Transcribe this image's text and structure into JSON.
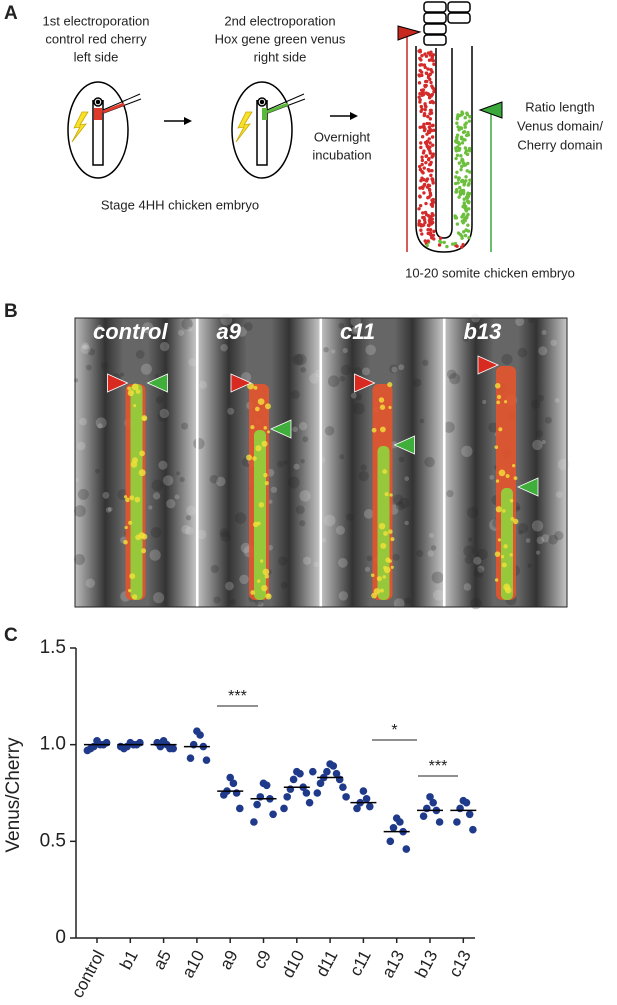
{
  "panel_a": {
    "label": "A",
    "step1": [
      "1st electroporation",
      "control red cherry",
      "left side"
    ],
    "step2": [
      "2nd electroporation",
      "Hox gene green venus",
      "right side"
    ],
    "incubation": [
      "Overnight",
      "incubation"
    ],
    "stage": "Stage 4HH chicken embryo",
    "ratio": [
      "Ratio length",
      "Venus domain/",
      "Cherry domain"
    ],
    "result": "10-20 somite chicken embryo"
  },
  "panel_b": {
    "label": "B",
    "images": [
      "control",
      "a9",
      "c11",
      "b13"
    ]
  },
  "panel_c": {
    "label": "C"
  },
  "chart_data": {
    "type": "strip",
    "y_label": "Venus/Cherry",
    "color": "#1f3a8a",
    "categories": [
      "control",
      "b1",
      "a5",
      "a10",
      "a9",
      "c9",
      "d10",
      "d11",
      "c11",
      "a13",
      "b13",
      "c13"
    ],
    "points": [
      [
        1.02,
        1.0,
        0.99,
        1.0,
        0.98,
        1.01,
        0.97
      ],
      [
        1.01,
        1.0,
        0.99,
        1.0,
        0.98,
        1.01,
        0.99
      ],
      [
        1.02,
        1.0,
        0.99,
        0.98,
        1.01,
        0.98
      ],
      [
        1.07,
        1.05,
        1.0,
        0.99,
        0.93,
        0.92
      ],
      [
        0.83,
        0.8,
        0.76,
        0.75,
        0.74,
        0.67
      ],
      [
        0.8,
        0.79,
        0.73,
        0.72,
        0.69,
        0.64,
        0.6
      ],
      [
        0.86,
        0.85,
        0.82,
        0.78,
        0.77,
        0.75,
        0.73,
        0.7,
        0.67,
        0.86
      ],
      [
        0.9,
        0.89,
        0.86,
        0.85,
        0.83,
        0.82,
        0.8,
        0.78,
        0.75,
        0.73
      ],
      [
        0.76,
        0.72,
        0.7,
        0.68,
        0.67
      ],
      [
        0.62,
        0.6,
        0.57,
        0.55,
        0.5,
        0.46
      ],
      [
        0.73,
        0.7,
        0.67,
        0.66,
        0.63,
        0.6
      ],
      [
        0.71,
        0.7,
        0.67,
        0.64,
        0.6,
        0.56
      ]
    ],
    "means": [
      1.0,
      1.0,
      1.0,
      0.99,
      0.76,
      0.72,
      0.78,
      0.83,
      0.7,
      0.55,
      0.66,
      0.66
    ],
    "ylim": [
      0,
      1.5
    ],
    "yticks": [
      0,
      0.5,
      {
        "value": 1,
        "label": "1.0"
      },
      1.5
    ],
    "annotations": [
      "***",
      "*",
      "***"
    ]
  }
}
